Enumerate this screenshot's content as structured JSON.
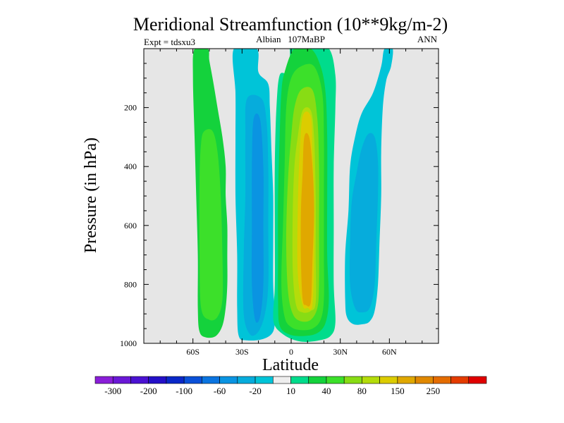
{
  "chart_data": {
    "type": "contour",
    "title": "Meridional Streamfunction (10**9kg/m-2)",
    "subtitle_left": "Expt = tdsxu3",
    "subtitle_center": "Albian   107MaBP",
    "subtitle_right": "ANN",
    "xlabel": "Latitude",
    "ylabel": "Pressure (in hPa)",
    "xlim": [
      -90,
      90
    ],
    "ylim": [
      0,
      1000
    ],
    "y_inverted": true,
    "x_ticks": [
      {
        "value": -60,
        "label": "60S"
      },
      {
        "value": -30,
        "label": "30S"
      },
      {
        "value": 0,
        "label": "0"
      },
      {
        "value": 30,
        "label": "30N"
      },
      {
        "value": 60,
        "label": "60N"
      }
    ],
    "y_ticks": [
      {
        "value": 200,
        "label": "200"
      },
      {
        "value": 400,
        "label": "400"
      },
      {
        "value": 600,
        "label": "600"
      },
      {
        "value": 800,
        "label": "800"
      },
      {
        "value": 1000,
        "label": "1000"
      }
    ],
    "background_color": "#e6e6e6",
    "colorbar": {
      "colors": [
        "#8a1ed8",
        "#6a18d6",
        "#4a12d2",
        "#2410c8",
        "#0a28c8",
        "#0a50d8",
        "#0a74e0",
        "#0a94e2",
        "#06acdc",
        "#00c4d8",
        "#eeeeee",
        "#00dc8c",
        "#14d23c",
        "#3ce02a",
        "#88dc14",
        "#b4dc0a",
        "#dccc00",
        "#e0a800",
        "#e08800",
        "#e46c00",
        "#e43c00",
        "#e00000"
      ],
      "labels": [
        "-300",
        "-200",
        "-100",
        "-60",
        "-20",
        "10",
        "40",
        "80",
        "150",
        "250"
      ]
    },
    "cells": [
      {
        "id": "sh-outer",
        "level": 12,
        "outline": [
          [
            -59,
            0
          ],
          [
            -51,
            0
          ],
          [
            -50,
            40
          ],
          [
            -48,
            100
          ],
          [
            -45,
            200
          ],
          [
            -42,
            300
          ],
          [
            -40,
            400
          ],
          [
            -40,
            500
          ],
          [
            -39,
            600
          ],
          [
            -39,
            700
          ],
          [
            -39,
            800
          ],
          [
            -40,
            880
          ],
          [
            -42,
            940
          ],
          [
            -46,
            975
          ],
          [
            -52,
            980
          ],
          [
            -56,
            960
          ],
          [
            -57,
            880
          ],
          [
            -57,
            700
          ],
          [
            -58,
            500
          ],
          [
            -59,
            300
          ],
          [
            -60,
            100
          ]
        ]
      },
      {
        "id": "sh-outer-core",
        "level": 13,
        "outline": [
          [
            -53,
            280
          ],
          [
            -48,
            280
          ],
          [
            -45,
            350
          ],
          [
            -43,
            500
          ],
          [
            -42,
            700
          ],
          [
            -42,
            850
          ],
          [
            -45,
            910
          ],
          [
            -50,
            920
          ],
          [
            -55,
            880
          ],
          [
            -56,
            700
          ],
          [
            -56,
            450
          ],
          [
            -55,
            320
          ]
        ]
      },
      {
        "id": "sh-hadley",
        "level": 9,
        "outline": [
          [
            -35,
            0
          ],
          [
            -21,
            0
          ],
          [
            -20,
            80
          ],
          [
            -14,
            120
          ],
          [
            -13,
            200
          ],
          [
            -12,
            350
          ],
          [
            -11,
            500
          ],
          [
            -11,
            650
          ],
          [
            -11,
            800
          ],
          [
            -10,
            900
          ],
          [
            -11,
            960
          ],
          [
            -17,
            985
          ],
          [
            -27,
            990
          ],
          [
            -32,
            975
          ],
          [
            -33,
            880
          ],
          [
            -33,
            700
          ],
          [
            -34,
            500
          ],
          [
            -34,
            300
          ],
          [
            -34,
            150
          ]
        ]
      },
      {
        "id": "sh-hadley-inner",
        "level": 8,
        "outline": [
          [
            -27,
            170
          ],
          [
            -18,
            170
          ],
          [
            -15,
            250
          ],
          [
            -14,
            400
          ],
          [
            -14,
            600
          ],
          [
            -14,
            800
          ],
          [
            -16,
            900
          ],
          [
            -20,
            960
          ],
          [
            -25,
            970
          ],
          [
            -29,
            900
          ],
          [
            -29,
            700
          ],
          [
            -28,
            500
          ],
          [
            -28,
            300
          ]
        ]
      },
      {
        "id": "sh-hadley-core",
        "level": 7,
        "outline": [
          [
            -23,
            240
          ],
          [
            -19,
            240
          ],
          [
            -17,
            400
          ],
          [
            -17,
            600
          ],
          [
            -17,
            800
          ],
          [
            -19,
            910
          ],
          [
            -22,
            920
          ],
          [
            -24,
            800
          ],
          [
            -24,
            600
          ],
          [
            -24,
            400
          ]
        ]
      },
      {
        "id": "nh-hadley",
        "level": 11,
        "outline": [
          [
            -6,
            0
          ],
          [
            -1,
            0
          ],
          [
            -2,
            80
          ],
          [
            -7,
            90
          ],
          [
            -9,
            200
          ],
          [
            -10,
            400
          ],
          [
            -10,
            600
          ],
          [
            -10,
            800
          ],
          [
            -11,
            900
          ],
          [
            -10,
            940
          ],
          [
            -6,
            965
          ],
          [
            0,
            985
          ],
          [
            8,
            995
          ],
          [
            17,
            990
          ],
          [
            24,
            975
          ],
          [
            27,
            930
          ],
          [
            26,
            800
          ],
          [
            26,
            600
          ],
          [
            26,
            400
          ],
          [
            27,
            200
          ],
          [
            27,
            90
          ],
          [
            23,
            0
          ],
          [
            12,
            0
          ]
        ]
      },
      {
        "id": "nh-hadley-2",
        "level": 12,
        "outline": [
          [
            2,
            0
          ],
          [
            12,
            0
          ],
          [
            18,
            60
          ],
          [
            21,
            150
          ],
          [
            22,
            300
          ],
          [
            22,
            500
          ],
          [
            22,
            700
          ],
          [
            23,
            850
          ],
          [
            21,
            930
          ],
          [
            16,
            965
          ],
          [
            8,
            975
          ],
          [
            -1,
            970
          ],
          [
            -7,
            940
          ],
          [
            -8,
            850
          ],
          [
            -8,
            700
          ],
          [
            -8,
            500
          ],
          [
            -7,
            300
          ],
          [
            -6,
            150
          ],
          [
            -4,
            80
          ]
        ]
      },
      {
        "id": "nh-hadley-3",
        "level": 13,
        "outline": [
          [
            6,
            60
          ],
          [
            14,
            60
          ],
          [
            19,
            150
          ],
          [
            20,
            300
          ],
          [
            20,
            500
          ],
          [
            20,
            700
          ],
          [
            20,
            850
          ],
          [
            18,
            920
          ],
          [
            13,
            950
          ],
          [
            6,
            955
          ],
          [
            0,
            945
          ],
          [
            -4,
            910
          ],
          [
            -6,
            800
          ],
          [
            -5,
            600
          ],
          [
            -4,
            400
          ],
          [
            -3,
            200
          ],
          [
            0,
            100
          ]
        ]
      },
      {
        "id": "nh-hadley-4",
        "level": 14,
        "outline": [
          [
            6,
            140
          ],
          [
            13,
            140
          ],
          [
            16,
            240
          ],
          [
            17,
            400
          ],
          [
            17,
            600
          ],
          [
            17,
            800
          ],
          [
            16,
            880
          ],
          [
            12,
            920
          ],
          [
            6,
            925
          ],
          [
            1,
            900
          ],
          [
            -2,
            820
          ],
          [
            -3,
            650
          ],
          [
            -2,
            450
          ],
          [
            0,
            300
          ],
          [
            2,
            200
          ]
        ]
      },
      {
        "id": "nh-hadley-5",
        "level": 15,
        "outline": [
          [
            7,
            210
          ],
          [
            12,
            210
          ],
          [
            14,
            300
          ],
          [
            15,
            500
          ],
          [
            15,
            700
          ],
          [
            15,
            860
          ],
          [
            12,
            890
          ],
          [
            7,
            895
          ],
          [
            3,
            870
          ],
          [
            1,
            750
          ],
          [
            1,
            550
          ],
          [
            2,
            400
          ],
          [
            4,
            300
          ]
        ]
      },
      {
        "id": "nh-hadley-6",
        "level": 16,
        "outline": [
          [
            7,
            230
          ],
          [
            12,
            230
          ],
          [
            13,
            350
          ],
          [
            14,
            500
          ],
          [
            14,
            700
          ],
          [
            13,
            870
          ],
          [
            10,
            880
          ],
          [
            7,
            870
          ],
          [
            4,
            760
          ],
          [
            4,
            550
          ],
          [
            5,
            380
          ]
        ]
      },
      {
        "id": "nh-hadley-core",
        "level": 17,
        "outline": [
          [
            8,
            300
          ],
          [
            11,
            300
          ],
          [
            13,
            400
          ],
          [
            14,
            550
          ],
          [
            13,
            720
          ],
          [
            12,
            860
          ],
          [
            9,
            870
          ],
          [
            7,
            850
          ],
          [
            6,
            720
          ],
          [
            6,
            550
          ],
          [
            7,
            420
          ]
        ]
      },
      {
        "id": "nh-ferrel",
        "level": 9,
        "outline": [
          [
            57,
            0
          ],
          [
            62,
            0
          ],
          [
            61,
            60
          ],
          [
            58,
            110
          ],
          [
            56,
            200
          ],
          [
            55,
            350
          ],
          [
            55,
            500
          ],
          [
            54,
            650
          ],
          [
            53,
            800
          ],
          [
            51,
            890
          ],
          [
            48,
            925
          ],
          [
            44,
            935
          ],
          [
            38,
            935
          ],
          [
            34,
            910
          ],
          [
            33,
            850
          ],
          [
            33,
            700
          ],
          [
            35,
            550
          ],
          [
            36,
            400
          ],
          [
            39,
            300
          ],
          [
            43,
            220
          ],
          [
            50,
            150
          ],
          [
            55,
            60
          ]
        ]
      },
      {
        "id": "nh-ferrel-core",
        "level": 8,
        "outline": [
          [
            47,
            290
          ],
          [
            51,
            300
          ],
          [
            53,
            380
          ],
          [
            53,
            500
          ],
          [
            52,
            650
          ],
          [
            51,
            800
          ],
          [
            48,
            880
          ],
          [
            43,
            895
          ],
          [
            39,
            880
          ],
          [
            36,
            800
          ],
          [
            36,
            650
          ],
          [
            37,
            520
          ],
          [
            40,
            420
          ],
          [
            43,
            340
          ]
        ]
      }
    ]
  }
}
